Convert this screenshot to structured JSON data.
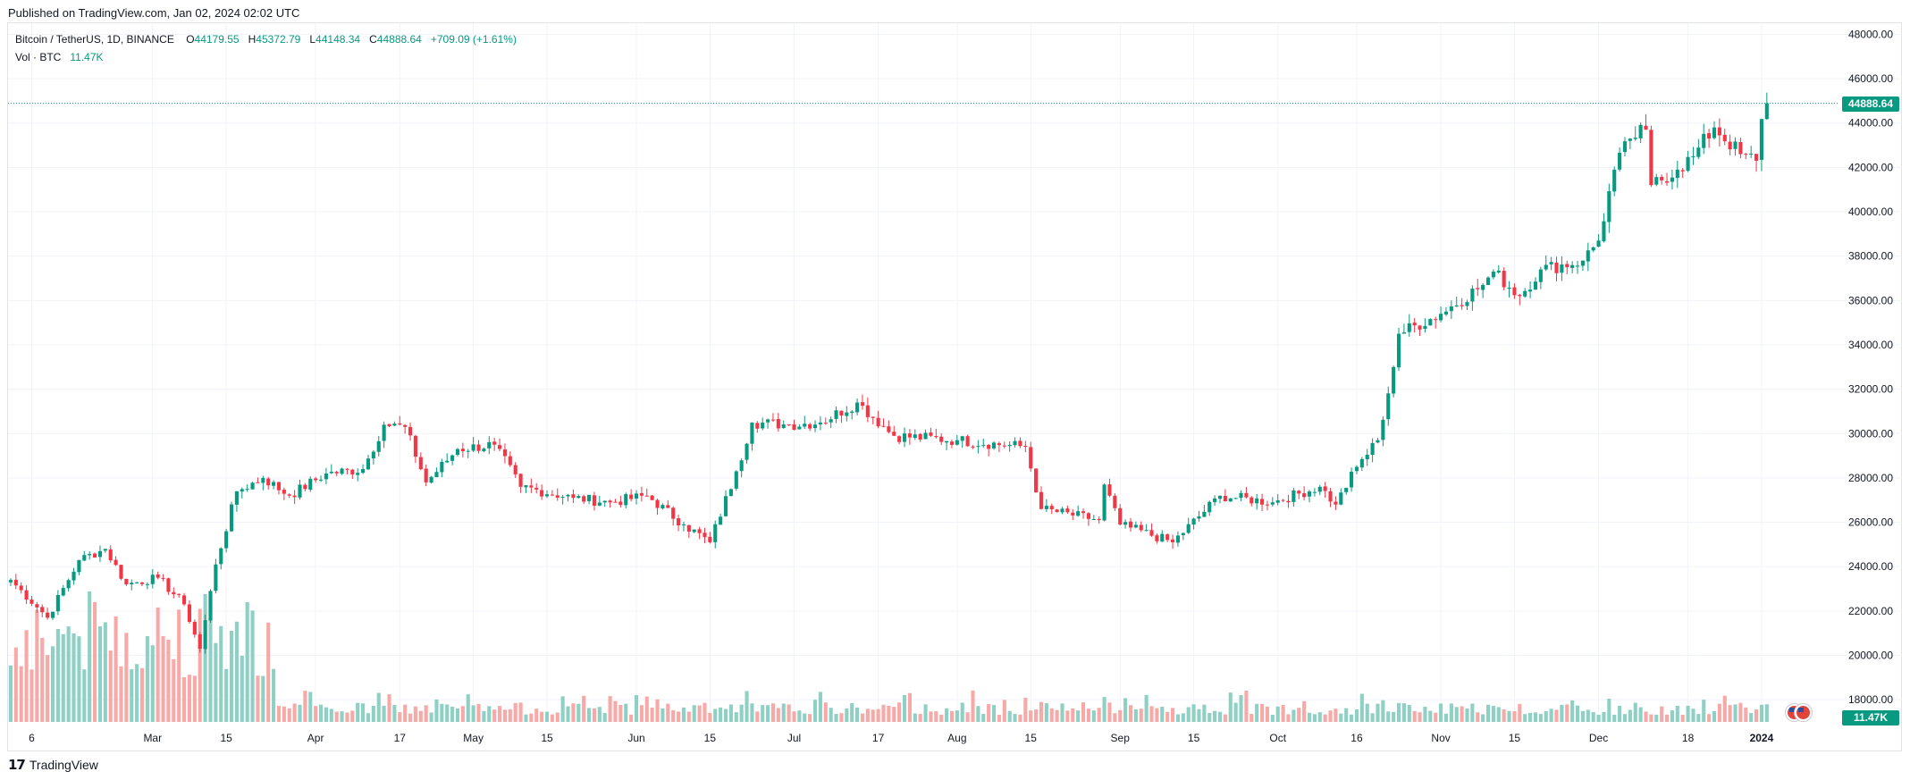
{
  "header": {
    "published": "Published on TradingView.com, Jan 02, 2024 02:02 UTC"
  },
  "legend": {
    "symbol": "Bitcoin / TetherUS, 1D, BINANCE",
    "o_label": "O",
    "o_value": "44179.55",
    "h_label": "H",
    "h_value": "45372.79",
    "l_label": "L",
    "l_value": "44148.34",
    "c_label": "C",
    "c_value": "44888.64",
    "change": "+709.09 (+1.61%)",
    "vol_label": "Vol · BTC",
    "vol_value": "11.47K"
  },
  "brand": {
    "logo": "𝟭𝟳",
    "name": "TradingView"
  },
  "colors": {
    "up": "#089981",
    "down": "#f23645",
    "vol_up": "#8fd0c4",
    "vol_down": "#f7a9a7",
    "grid": "#f0f3fa"
  },
  "chart_data": {
    "type": "candlestick",
    "symbol": "Bitcoin / TetherUS",
    "interval": "1D",
    "exchange": "BINANCE",
    "last_price": 44888.64,
    "last_price_label": "44888.64",
    "last_volume_label": "11.47K",
    "ylim": [
      17000,
      48500
    ],
    "y_ticks": [
      18000,
      20000,
      22000,
      24000,
      26000,
      28000,
      30000,
      32000,
      34000,
      36000,
      38000,
      40000,
      42000,
      44000,
      46000,
      48000
    ],
    "y_tick_labels": [
      "18000.00",
      "20000.00",
      "22000.00",
      "24000.00",
      "26000.00",
      "28000.00",
      "30000.00",
      "32000.00",
      "34000.00",
      "36000.00",
      "38000.00",
      "40000.00",
      "42000.00",
      "44000.00",
      "46000.00",
      "48000.00"
    ],
    "x_range": [
      "2023-02-02",
      "2024-01-02"
    ],
    "x_ticks": [
      {
        "date": "2023-02-06",
        "label": "6"
      },
      {
        "date": "2023-03-01",
        "label": "Mar"
      },
      {
        "date": "2023-03-15",
        "label": "15"
      },
      {
        "date": "2023-04-01",
        "label": "Apr"
      },
      {
        "date": "2023-04-17",
        "label": "17"
      },
      {
        "date": "2023-05-01",
        "label": "May"
      },
      {
        "date": "2023-05-15",
        "label": "15"
      },
      {
        "date": "2023-06-01",
        "label": "Jun"
      },
      {
        "date": "2023-06-15",
        "label": "15"
      },
      {
        "date": "2023-07-01",
        "label": "Jul"
      },
      {
        "date": "2023-07-17",
        "label": "17"
      },
      {
        "date": "2023-08-01",
        "label": "Aug"
      },
      {
        "date": "2023-08-15",
        "label": "15"
      },
      {
        "date": "2023-09-01",
        "label": "Sep"
      },
      {
        "date": "2023-09-15",
        "label": "15"
      },
      {
        "date": "2023-10-01",
        "label": "Oct"
      },
      {
        "date": "2023-10-16",
        "label": "16"
      },
      {
        "date": "2023-11-01",
        "label": "Nov"
      },
      {
        "date": "2023-11-15",
        "label": "15"
      },
      {
        "date": "2023-12-01",
        "label": "Dec"
      },
      {
        "date": "2023-12-18",
        "label": "18"
      },
      {
        "date": "2024-01-01",
        "label": "2024"
      }
    ],
    "close_keypoints": [
      [
        "2023-02-02",
        23400
      ],
      [
        "2023-02-09",
        21700
      ],
      [
        "2023-02-15",
        24300
      ],
      [
        "2023-02-20",
        24800
      ],
      [
        "2023-02-24",
        23200
      ],
      [
        "2023-03-02",
        23500
      ],
      [
        "2023-03-07",
        22300
      ],
      [
        "2023-03-10",
        20300
      ],
      [
        "2023-03-13",
        24100
      ],
      [
        "2023-03-17",
        27400
      ],
      [
        "2023-03-22",
        28000
      ],
      [
        "2023-03-27",
        27200
      ],
      [
        "2023-04-03",
        28200
      ],
      [
        "2023-04-10",
        28400
      ],
      [
        "2023-04-14",
        30400
      ],
      [
        "2023-04-18",
        30300
      ],
      [
        "2023-04-22",
        27800
      ],
      [
        "2023-04-28",
        29300
      ],
      [
        "2023-05-05",
        29500
      ],
      [
        "2023-05-10",
        27600
      ],
      [
        "2023-05-20",
        27100
      ],
      [
        "2023-05-27",
        26900
      ],
      [
        "2023-06-03",
        27200
      ],
      [
        "2023-06-10",
        25900
      ],
      [
        "2023-06-15",
        25100
      ],
      [
        "2023-06-20",
        28300
      ],
      [
        "2023-06-23",
        30500
      ],
      [
        "2023-06-30",
        30400
      ],
      [
        "2023-07-06",
        30500
      ],
      [
        "2023-07-13",
        31400
      ],
      [
        "2023-07-20",
        29900
      ],
      [
        "2023-08-01",
        29700
      ],
      [
        "2023-08-14",
        29400
      ],
      [
        "2023-08-17",
        26600
      ],
      [
        "2023-08-28",
        26100
      ],
      [
        "2023-08-29",
        27700
      ],
      [
        "2023-09-01",
        25900
      ],
      [
        "2023-09-11",
        25100
      ],
      [
        "2023-09-20",
        27200
      ],
      [
        "2023-09-30",
        26900
      ],
      [
        "2023-10-09",
        27600
      ],
      [
        "2023-10-12",
        26800
      ],
      [
        "2023-10-16",
        28500
      ],
      [
        "2023-10-20",
        29700
      ],
      [
        "2023-10-23",
        33000
      ],
      [
        "2023-10-24",
        34500
      ],
      [
        "2023-11-01",
        35400
      ],
      [
        "2023-11-09",
        36700
      ],
      [
        "2023-11-11",
        37300
      ],
      [
        "2023-11-16",
        36200
      ],
      [
        "2023-11-20",
        37400
      ],
      [
        "2023-11-28",
        37800
      ],
      [
        "2023-12-01",
        38700
      ],
      [
        "2023-12-04",
        41900
      ],
      [
        "2023-12-07",
        43300
      ],
      [
        "2023-12-10",
        43700
      ],
      [
        "2023-12-11",
        41200
      ],
      [
        "2023-12-16",
        41900
      ],
      [
        "2023-12-19",
        42500
      ],
      [
        "2023-12-23",
        43800
      ],
      [
        "2023-12-28",
        42600
      ],
      [
        "2023-12-31",
        42300
      ],
      [
        "2024-01-01",
        44180
      ],
      [
        "2024-01-02",
        44888.64
      ]
    ],
    "volume_labels": [
      "11.47K"
    ]
  }
}
